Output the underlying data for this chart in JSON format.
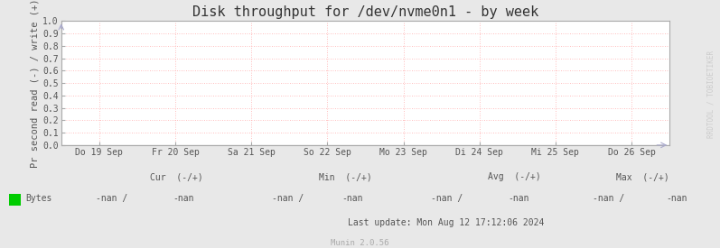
{
  "title": "Disk throughput for /dev/nvme0n1 - by week",
  "ylabel": "Pr second read (-) / write (+)",
  "background_color": "#e8e8e8",
  "plot_bg_color": "#ffffff",
  "grid_color": "#ffaaaa",
  "border_color": "#aaaaaa",
  "ylim": [
    0.0,
    1.0
  ],
  "yticks": [
    0.0,
    0.1,
    0.2,
    0.3,
    0.4,
    0.5,
    0.6,
    0.7,
    0.8,
    0.9,
    1.0
  ],
  "x_labels": [
    "Do 19 Sep",
    "Fr 20 Sep",
    "Sa 21 Sep",
    "So 22 Sep",
    "Mo 23 Sep",
    "Di 24 Sep",
    "Mi 25 Sep",
    "Do 26 Sep"
  ],
  "x_positions": [
    0,
    1,
    2,
    3,
    4,
    5,
    6,
    7
  ],
  "legend_color": "#00cc00",
  "footer_cur": "Cur  (-/+)",
  "footer_min": "Min  (-/+)",
  "footer_avg": "Avg  (-/+)",
  "footer_max": "Max  (-/+)",
  "last_update": "Last update: Mon Aug 12 17:12:06 2024",
  "munin_version": "Munin 2.0.56",
  "watermark": "RRDTOOL / TOBIOETIKER",
  "title_fontsize": 11,
  "axis_label_fontsize": 7.5,
  "tick_fontsize": 7,
  "footer_fontsize": 7
}
